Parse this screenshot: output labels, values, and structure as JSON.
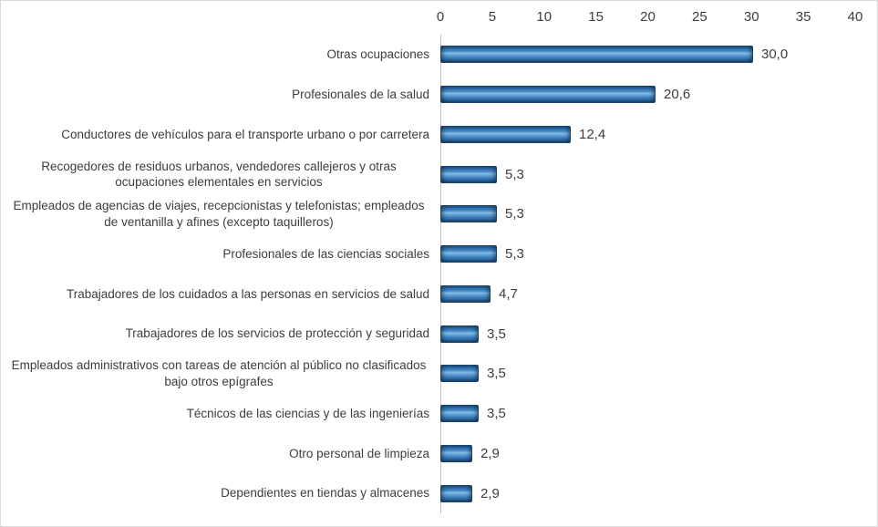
{
  "chart_data": {
    "type": "bar",
    "orientation": "horizontal",
    "title": "",
    "xlabel": "",
    "ylabel": "",
    "xlim": [
      0,
      40
    ],
    "x_ticks": [
      "0",
      "5",
      "10",
      "15",
      "20",
      "25",
      "30",
      "35",
      "40"
    ],
    "grid": "off",
    "legend": "none",
    "categories": [
      "Otras ocupaciones",
      "Profesionales de la salud",
      "Conductores de vehículos para el transporte urbano o por carretera",
      "Recogedores de residuos urbanos, vendedores callejeros y otras ocupaciones elementales en servicios",
      "Empleados de agencias de viajes, recepcionistas y telefonistas; empleados de ventanilla y afines (excepto taquilleros)",
      "Profesionales de las ciencias sociales",
      "Trabajadores de los cuidados a las personas en servicios de salud",
      "Trabajadores de los servicios de protección y seguridad",
      "Empleados administrativos con tareas de atención al público no clasificados bajo otros epígrafes",
      "Técnicos de las ciencias y de las ingenierías",
      "Otro personal de limpieza",
      "Dependientes en tiendas y almacenes"
    ],
    "values": [
      30.0,
      20.6,
      12.4,
      5.3,
      5.3,
      5.3,
      4.7,
      3.5,
      3.5,
      3.5,
      2.9,
      2.9
    ],
    "value_labels": [
      "30,0",
      "20,6",
      "12,4",
      "5,3",
      "5,3",
      "5,3",
      "4,7",
      "3,5",
      "3,5",
      "3,5",
      "2,9",
      "2,9"
    ],
    "colors": {
      "bar_fill": "#2E75B6",
      "bar_highlight": "#85BCE8",
      "bar_border": "#1B4367",
      "axis_line": "#BFBFBF",
      "frame_border": "#D9D9D9",
      "text": "#3D3D3D",
      "background": "#FFFFFF"
    }
  }
}
